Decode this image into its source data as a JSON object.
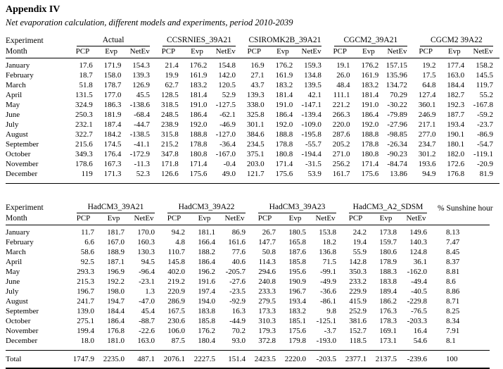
{
  "page": {
    "title": "Appendix IV",
    "subtitle": "Net evaporation calculation, different models and experiments, period 2010-2039"
  },
  "table1": {
    "corner_label": "Experiment",
    "month_label": "Month",
    "groups": [
      "Actual",
      "CCSRNIES_39A21",
      "CSIROMK2B_39A21",
      "CGCM2_39A21",
      "CGCM2 39A22"
    ],
    "subheaders": [
      "PCP",
      "Evp",
      "NetEv"
    ],
    "rows": [
      {
        "month": "January",
        "values": [
          "17.6",
          "171.9",
          "154.3",
          "21.4",
          "176.2",
          "154.8",
          "16.9",
          "176.2",
          "159.3",
          "19.1",
          "176.2",
          "157.15",
          "19.2",
          "177.4",
          "158.2"
        ]
      },
      {
        "month": "February",
        "values": [
          "18.7",
          "158.0",
          "139.3",
          "19.9",
          "161.9",
          "142.0",
          "27.1",
          "161.9",
          "134.8",
          "26.0",
          "161.9",
          "135.96",
          "17.5",
          "163.0",
          "145.5"
        ]
      },
      {
        "month": "March",
        "values": [
          "51.8",
          "178.7",
          "126.9",
          "62.7",
          "183.2",
          "120.5",
          "43.7",
          "183.2",
          "139.5",
          "48.4",
          "183.2",
          "134.72",
          "64.8",
          "184.4",
          "119.7"
        ]
      },
      {
        "month": "April",
        "values": [
          "131.5",
          "177.0",
          "45.5",
          "128.5",
          "181.4",
          "52.9",
          "139.3",
          "181.4",
          "42.1",
          "111.1",
          "181.4",
          "70.29",
          "127.4",
          "182.7",
          "55.2"
        ]
      },
      {
        "month": "May",
        "values": [
          "324.9",
          "186.3",
          "-138.6",
          "318.5",
          "191.0",
          "-127.5",
          "338.0",
          "191.0",
          "-147.1",
          "221.2",
          "191.0",
          "-30.22",
          "360.1",
          "192.3",
          "-167.8"
        ]
      },
      {
        "month": "June",
        "values": [
          "250.3",
          "181.9",
          "-68.4",
          "248.5",
          "186.4",
          "-62.1",
          "325.8",
          "186.4",
          "-139.4",
          "266.3",
          "186.4",
          "-79.89",
          "246.9",
          "187.7",
          "-59.2"
        ]
      },
      {
        "month": "July",
        "values": [
          "232.1",
          "187.4",
          "-44.7",
          "238.9",
          "192.0",
          "-46.9",
          "301.1",
          "192.0",
          "-109.0",
          "220.0",
          "192.0",
          "-27.96",
          "217.1",
          "193.4",
          "-23.7"
        ]
      },
      {
        "month": "August",
        "values": [
          "322.7",
          "184.2",
          "-138.5",
          "315.8",
          "188.8",
          "-127.0",
          "384.6",
          "188.8",
          "-195.8",
          "287.6",
          "188.8",
          "-98.85",
          "277.0",
          "190.1",
          "-86.9"
        ]
      },
      {
        "month": "September",
        "values": [
          "215.6",
          "174.5",
          "-41.1",
          "215.2",
          "178.8",
          "-36.4",
          "234.5",
          "178.8",
          "-55.7",
          "205.2",
          "178.8",
          "-26.34",
          "234.7",
          "180.1",
          "-54.7"
        ]
      },
      {
        "month": "October",
        "values": [
          "349.3",
          "176.4",
          "-172.9",
          "347.8",
          "180.8",
          "-167.0",
          "375.1",
          "180.8",
          "-194.4",
          "271.0",
          "180.8",
          "-90.23",
          "301.2",
          "182.0",
          "-119.1"
        ]
      },
      {
        "month": "November",
        "values": [
          "178.6",
          "167.3",
          "-11.3",
          "171.8",
          "171.4",
          "-0.4",
          "203.0",
          "171.4",
          "-31.5",
          "256.2",
          "171.4",
          "-84.74",
          "193.6",
          "172.6",
          "-20.9"
        ]
      },
      {
        "month": "December",
        "values": [
          "119",
          "171.3",
          "52.3",
          "126.6",
          "175.6",
          "49.0",
          "121.7",
          "175.6",
          "53.9",
          "161.7",
          "175.6",
          "13.86",
          "94.9",
          "176.8",
          "81.9"
        ]
      }
    ]
  },
  "table2": {
    "corner_label": "Experiment",
    "month_label": "Month",
    "groups": [
      "HadCM3_39A21",
      "HadCM3_39A22",
      "HadCM3_39A23",
      "HadCM3_A2_SDSM"
    ],
    "sunshine_label": "% Sunshine hour",
    "subheaders": [
      "PCP",
      "Evp",
      "NetEv"
    ],
    "rows": [
      {
        "month": "January",
        "values": [
          "11.7",
          "181.7",
          "170.0",
          "94.2",
          "181.1",
          "86.9",
          "26.7",
          "180.5",
          "153.8",
          "24.2",
          "173.8",
          "149.6",
          "8.13"
        ]
      },
      {
        "month": "February",
        "values": [
          "6.6",
          "167.0",
          "160.3",
          "4.8",
          "166.4",
          "161.6",
          "147.7",
          "165.8",
          "18.2",
          "19.4",
          "159.7",
          "140.3",
          "7.47"
        ]
      },
      {
        "month": "March",
        "values": [
          "58.6",
          "188.9",
          "130.3",
          "110.7",
          "188.2",
          "77.6",
          "50.8",
          "187.6",
          "136.8",
          "55.9",
          "180.6",
          "124.8",
          "8.45"
        ]
      },
      {
        "month": "April",
        "values": [
          "92.5",
          "187.1",
          "94.5",
          "145.8",
          "186.4",
          "40.6",
          "114.3",
          "185.8",
          "71.5",
          "142.8",
          "178.9",
          "36.1",
          "8.37"
        ]
      },
      {
        "month": "May",
        "values": [
          "293.3",
          "196.9",
          "-96.4",
          "402.0",
          "196.2",
          "-205.7",
          "294.6",
          "195.6",
          "-99.1",
          "350.3",
          "188.3",
          "-162.0",
          "8.81"
        ]
      },
      {
        "month": "June",
        "values": [
          "215.3",
          "192.2",
          "-23.1",
          "219.2",
          "191.6",
          "-27.6",
          "240.8",
          "190.9",
          "-49.9",
          "233.2",
          "183.8",
          "-49.4",
          "8.6"
        ]
      },
      {
        "month": "July",
        "values": [
          "196.7",
          "198.0",
          "1.3",
          "220.9",
          "197.4",
          "-23.5",
          "233.3",
          "196.7",
          "-36.6",
          "229.9",
          "189.4",
          "-40.5",
          "8.86"
        ]
      },
      {
        "month": "August",
        "values": [
          "241.7",
          "194.7",
          "-47.0",
          "286.9",
          "194.0",
          "-92.9",
          "279.5",
          "193.4",
          "-86.1",
          "415.9",
          "186.2",
          "-229.8",
          "8.71"
        ]
      },
      {
        "month": "September",
        "values": [
          "139.0",
          "184.4",
          "45.4",
          "167.5",
          "183.8",
          "16.3",
          "173.3",
          "183.2",
          "9.8",
          "252.9",
          "176.3",
          "-76.5",
          "8.25"
        ]
      },
      {
        "month": "October",
        "values": [
          "275.1",
          "186.4",
          "-88.7",
          "230.6",
          "185.8",
          "-44.9",
          "310.3",
          "185.1",
          "-125.1",
          "381.6",
          "178.3",
          "-203.3",
          "8.34"
        ]
      },
      {
        "month": "November",
        "values": [
          "199.4",
          "176.8",
          "-22.6",
          "106.0",
          "176.2",
          "70.2",
          "179.3",
          "175.6",
          "-3.7",
          "152.7",
          "169.1",
          "16.4",
          "7.91"
        ]
      },
      {
        "month": "December",
        "values": [
          "18.0",
          "181.0",
          "163.0",
          "87.5",
          "180.4",
          "93.0",
          "372.8",
          "179.8",
          "-193.0",
          "118.5",
          "173.1",
          "54.6",
          "8.1"
        ]
      }
    ],
    "total_row": {
      "month": "Total",
      "values": [
        "1747.9",
        "2235.0",
        "487.1",
        "2076.1",
        "2227.5",
        "151.4",
        "2423.5",
        "2220.0",
        "-203.5",
        "2377.1",
        "2137.5",
        "-239.6",
        "100"
      ]
    }
  }
}
